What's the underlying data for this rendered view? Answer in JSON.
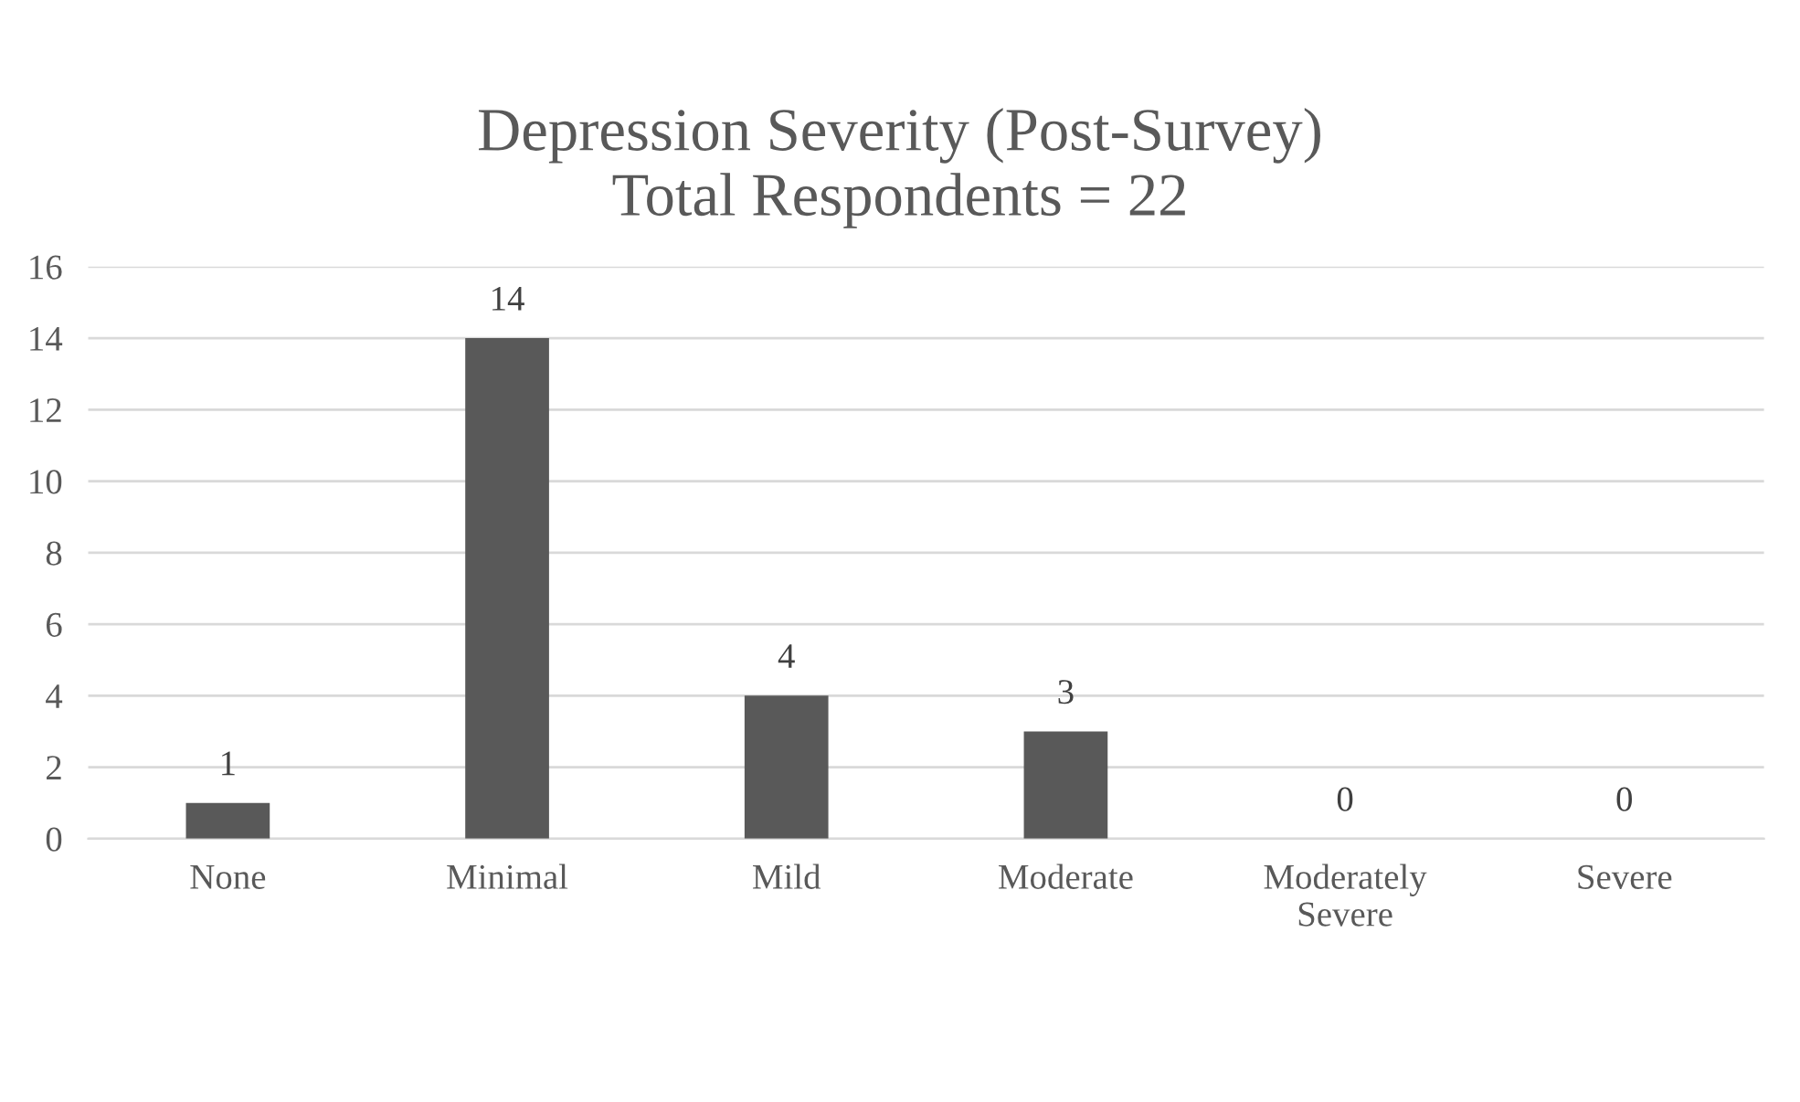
{
  "chart_data": {
    "type": "bar",
    "title": "Depression Severity (Post-Survey)",
    "subtitle": "Total Respondents = 22",
    "categories": [
      "None",
      "Minimal",
      "Mild",
      "Moderate",
      "Moderately Severe",
      "Severe"
    ],
    "values": [
      1,
      14,
      4,
      3,
      0,
      0
    ],
    "color": "#595959",
    "ylim": [
      0,
      16
    ],
    "yticks": [
      0,
      2,
      4,
      6,
      8,
      10,
      12,
      14,
      16
    ],
    "grid": "y",
    "data_labels": true,
    "legend": false
  }
}
